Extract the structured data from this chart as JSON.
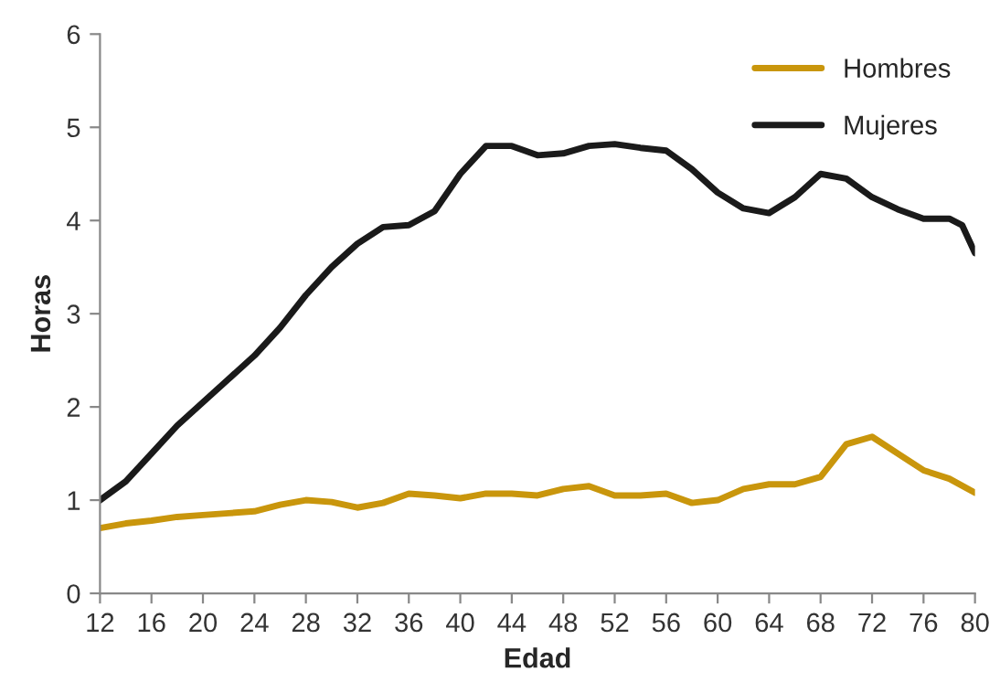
{
  "chart_data": {
    "type": "line",
    "xlabel": "Edad",
    "ylabel": "Horas",
    "xlim": [
      12,
      80
    ],
    "xticks": [
      12,
      16,
      20,
      24,
      28,
      32,
      36,
      40,
      44,
      48,
      52,
      56,
      60,
      64,
      68,
      72,
      76,
      80
    ],
    "ylim": [
      0,
      6
    ],
    "yticks": [
      0,
      1,
      2,
      3,
      4,
      5,
      6
    ],
    "grid": false,
    "legend": "top right",
    "marker": "none",
    "line_style": "solid",
    "series": [
      {
        "name": "Hombres",
        "color": "#c9960c",
        "x": [
          12,
          14,
          16,
          18,
          20,
          22,
          24,
          26,
          28,
          30,
          32,
          34,
          36,
          38,
          40,
          42,
          44,
          46,
          48,
          50,
          52,
          54,
          56,
          58,
          60,
          62,
          64,
          66,
          68,
          70,
          72,
          74,
          76,
          78,
          80
        ],
        "values": [
          0.7,
          0.75,
          0.78,
          0.82,
          0.84,
          0.86,
          0.88,
          0.95,
          1.0,
          0.98,
          0.92,
          0.97,
          1.07,
          1.05,
          1.02,
          1.07,
          1.07,
          1.05,
          1.12,
          1.15,
          1.05,
          1.05,
          1.07,
          0.97,
          1.0,
          1.12,
          1.17,
          1.17,
          1.25,
          1.6,
          1.68,
          1.5,
          1.32,
          1.23,
          1.08
        ]
      },
      {
        "name": "Mujeres",
        "color": "#1a1a1a",
        "x": [
          12,
          14,
          16,
          18,
          20,
          22,
          24,
          26,
          28,
          30,
          32,
          34,
          36,
          38,
          40,
          42,
          44,
          46,
          48,
          50,
          52,
          54,
          56,
          58,
          60,
          62,
          64,
          66,
          68,
          70,
          72,
          74,
          76,
          78,
          79,
          80
        ],
        "values": [
          1.0,
          1.2,
          1.5,
          1.8,
          2.05,
          2.3,
          2.55,
          2.85,
          3.2,
          3.5,
          3.75,
          3.93,
          3.95,
          4.1,
          4.5,
          4.8,
          4.8,
          4.7,
          4.72,
          4.8,
          4.82,
          4.78,
          4.75,
          4.55,
          4.3,
          4.13,
          4.08,
          4.25,
          4.5,
          4.45,
          4.25,
          4.12,
          4.02,
          4.02,
          3.95,
          3.65
        ]
      }
    ]
  }
}
